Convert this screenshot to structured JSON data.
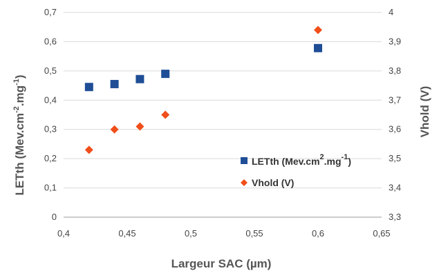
{
  "chart_data": {
    "type": "scatter",
    "x_label": "Largeur SAC (µm)",
    "y_label": {
      "main": "LETth (Mev.cm",
      "sup1": "-2",
      "mid": ".mg",
      "sup2": "-1",
      "end": ")"
    },
    "y2_label": "Vhold (V)",
    "xlim": [
      0.4,
      0.65
    ],
    "ylim": [
      0,
      0.7
    ],
    "y2lim": [
      3.3,
      4.0
    ],
    "x_ticks": [
      "0,4",
      "0,45",
      "0,5",
      "0,55",
      "0,6",
      "0,65"
    ],
    "y_ticks": [
      "0",
      "0,1",
      "0,2",
      "0,3",
      "0,4",
      "0,5",
      "0,6",
      "0,7"
    ],
    "y2_ticks": [
      "3,3",
      "3,4",
      "3,5",
      "3,6",
      "3,7",
      "3,8",
      "3,9",
      "4"
    ],
    "grid": "horizontal",
    "legend_position": "right",
    "series": [
      {
        "name": "LETth (Mev.cm².mg⁻¹)",
        "legend": {
          "main": "LETth (Mev.cm",
          "sup1": "2",
          "mid": ".mg",
          "sup2": "-1",
          "end": ")"
        },
        "axis": "left",
        "marker": "square",
        "color": "#1F4E96",
        "x": [
          0.42,
          0.44,
          0.46,
          0.48,
          0.6
        ],
        "y": [
          0.445,
          0.455,
          0.472,
          0.49,
          0.578
        ]
      },
      {
        "name": "Vhold (V)",
        "legend": {
          "main": "Vhold (V)"
        },
        "axis": "right",
        "marker": "diamond",
        "color": "#F04E1A",
        "x": [
          0.42,
          0.44,
          0.46,
          0.48,
          0.6
        ],
        "y": [
          3.53,
          3.6,
          3.61,
          3.65,
          3.94
        ]
      }
    ]
  }
}
